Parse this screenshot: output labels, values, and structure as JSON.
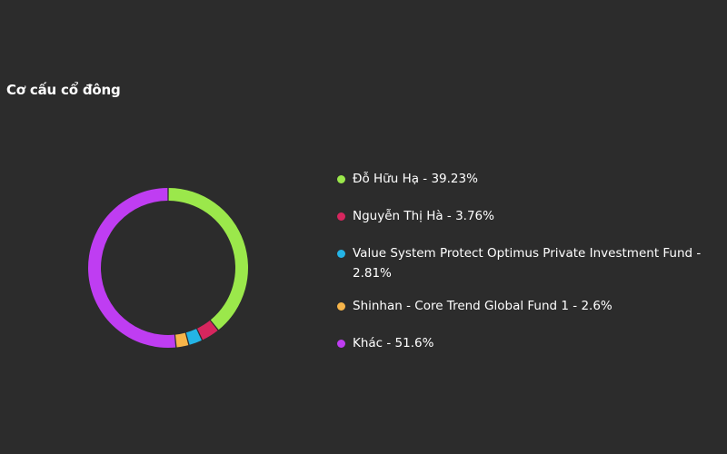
{
  "chart_data": {
    "type": "pie",
    "title": "Cơ cấu cổ đông",
    "legend_position": "right",
    "slices": [
      {
        "label": "Đỗ Hữu Hạ - 39.23%",
        "value": 39.23,
        "color": "#9be84b"
      },
      {
        "label": "Nguyễn Thị Hà - 3.76%",
        "value": 3.76,
        "color": "#d6265e"
      },
      {
        "label": "Value System Protect Optimus Private Investment Fund - 2.81%",
        "value": 2.81,
        "color": "#24b4e6"
      },
      {
        "label": "Shinhan - Core Trend Global Fund 1 - 2.6%",
        "value": 2.6,
        "color": "#f7b54a"
      },
      {
        "label": "Khác - 51.6%",
        "value": 51.6,
        "color": "#bf3df2"
      }
    ]
  }
}
